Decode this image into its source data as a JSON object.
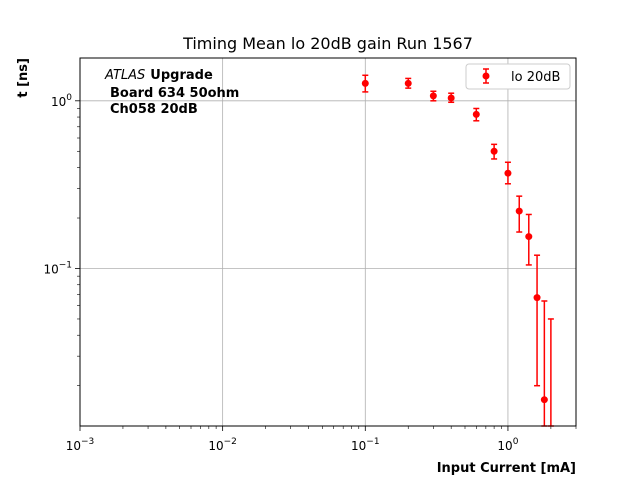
{
  "chart_data": {
    "type": "scatter",
    "title": "Timing Mean lo 20dB gain Run 1567",
    "xlabel": "Input Current [mA]",
    "ylabel": "t [ns]",
    "xscale": "log",
    "yscale": "log",
    "xlim": [
      0.001,
      3.0
    ],
    "ylim": [
      0.0115,
      1.8
    ],
    "xticks": [
      {
        "value": 0.001,
        "base": "10",
        "exp": "−3"
      },
      {
        "value": 0.01,
        "base": "10",
        "exp": "−2"
      },
      {
        "value": 0.1,
        "base": "10",
        "exp": "−1"
      },
      {
        "value": 1,
        "base": "10",
        "exp": "0"
      }
    ],
    "yticks": [
      {
        "value": 0.1,
        "base": "10",
        "exp": "−1"
      },
      {
        "value": 1,
        "base": "10",
        "exp": "0"
      }
    ],
    "grid": true,
    "legend_position": "top-right",
    "annotation": {
      "line1_italic": "ATLAS",
      "line1_bold": "Upgrade",
      "line2": "Board 634 50ohm",
      "line3": "Ch058 20dB"
    },
    "series": [
      {
        "name": "lo 20dB",
        "color": "#ff0000",
        "marker": "circle",
        "points": [
          {
            "x": 0.1,
            "y": 1.27,
            "err": [
              1.13,
              1.42
            ]
          },
          {
            "x": 0.2,
            "y": 1.27,
            "err": [
              1.19,
              1.36
            ]
          },
          {
            "x": 0.3,
            "y": 1.07,
            "err": [
              1.0,
              1.14
            ]
          },
          {
            "x": 0.4,
            "y": 1.04,
            "err": [
              0.98,
              1.11
            ]
          },
          {
            "x": 0.6,
            "y": 0.83,
            "err": [
              0.76,
              0.9
            ]
          },
          {
            "x": 0.8,
            "y": 0.5,
            "err": [
              0.45,
              0.55
            ]
          },
          {
            "x": 1.0,
            "y": 0.37,
            "err": [
              0.32,
              0.43
            ]
          },
          {
            "x": 1.2,
            "y": 0.22,
            "err": [
              0.165,
              0.27
            ]
          },
          {
            "x": 1.4,
            "y": 0.155,
            "err": [
              0.105,
              0.21
            ]
          },
          {
            "x": 1.6,
            "y": 0.067,
            "err": [
              0.02,
              0.12
            ]
          },
          {
            "x": 1.8,
            "y": 0.0165,
            "err": [
              0.0115,
              0.064
            ]
          },
          {
            "x": 2.0,
            "y": 0.0105,
            "err": [
              0.0115,
              0.05
            ]
          }
        ]
      }
    ]
  }
}
